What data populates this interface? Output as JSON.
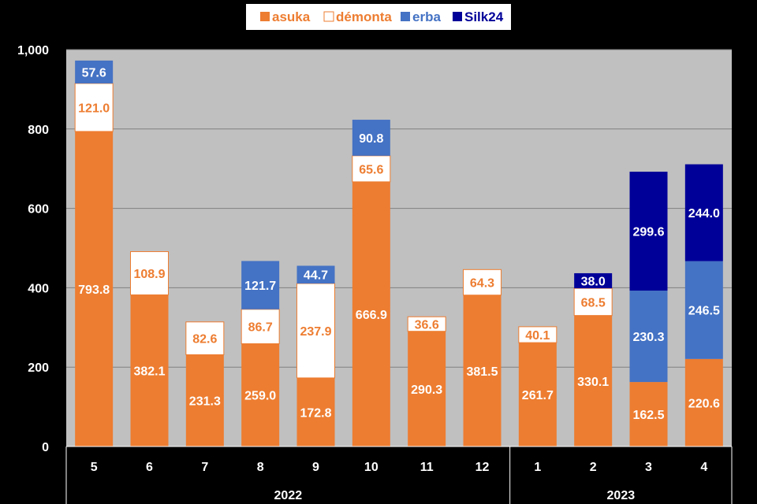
{
  "chart_data": {
    "type": "bar",
    "stacked": true,
    "categories": [
      "5",
      "6",
      "7",
      "8",
      "9",
      "10",
      "11",
      "12",
      "1",
      "2",
      "3",
      "4"
    ],
    "groups": [
      {
        "label": "2022",
        "categories": [
          "5",
          "6",
          "7",
          "8",
          "9",
          "10",
          "11",
          "12"
        ]
      },
      {
        "label": "2023",
        "categories": [
          "1",
          "2",
          "3",
          "4"
        ]
      }
    ],
    "series": [
      {
        "name": "asuka",
        "color": "#ED7D31",
        "label_color": "#FFFFFF",
        "values": [
          793.8,
          382.1,
          231.3,
          259.0,
          172.8,
          666.9,
          290.3,
          381.5,
          261.7,
          330.1,
          162.5,
          220.6
        ],
        "labels": [
          "793.8",
          "382.1",
          "231.3",
          "259.0",
          "172.8",
          "666.9",
          "290.3",
          "381.5",
          "261.7",
          "330.1",
          "162.5",
          "220.6"
        ]
      },
      {
        "name": "démonta",
        "color": "#FFFFFF",
        "label_color": "#ED7D31",
        "values": [
          121.0,
          108.9,
          82.6,
          86.7,
          237.9,
          65.6,
          36.6,
          64.3,
          40.1,
          68.5,
          null,
          null
        ],
        "labels": [
          "121.0",
          "108.9",
          "82.6",
          "86.7",
          "237.9",
          "65.6",
          "36.6",
          "64.3",
          "40.1",
          "68.5",
          "",
          ""
        ]
      },
      {
        "name": "erba",
        "color": "#4472C4",
        "label_color": "#FFFFFF",
        "values": [
          57.6,
          null,
          null,
          121.7,
          44.7,
          90.8,
          null,
          null,
          null,
          null,
          230.3,
          246.5
        ],
        "labels": [
          "57.6",
          "",
          "",
          "121.7",
          "44.7",
          "90.8",
          "",
          "",
          "",
          "",
          "230.3",
          "246.5"
        ]
      },
      {
        "name": "Silk24",
        "color": "#000099",
        "label_color": "#FFFFFF",
        "values": [
          null,
          null,
          null,
          null,
          null,
          null,
          null,
          null,
          null,
          38.0,
          299.6,
          244.0
        ],
        "labels": [
          "",
          "",
          "",
          "",
          "",
          "",
          "",
          "",
          "",
          "38.0",
          "299.6",
          "244.0"
        ]
      }
    ],
    "ylim": [
      0,
      1000
    ],
    "yticks": [
      0,
      200,
      400,
      600,
      800,
      1000
    ],
    "ytick_labels": [
      "0",
      "200",
      "400",
      "600",
      "800",
      "1,000"
    ],
    "grid": true,
    "legend_position": "top",
    "plot_background": "#C0C0C0",
    "page_background": "#000000"
  }
}
